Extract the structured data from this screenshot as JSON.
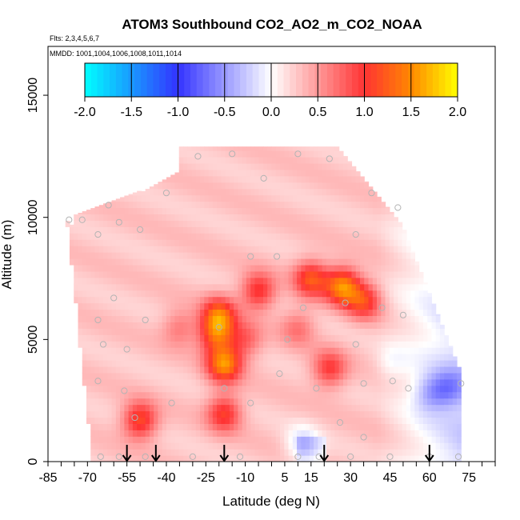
{
  "chart_data": {
    "type": "heatmap",
    "title": "ATOM3 Southbound CO2_AO2_m_CO2_NOAA",
    "flights_label": "Flts: 2,3,4,5,6,7",
    "dates_label": "MMDD: 1001,1004,1006,1008,1011,1014",
    "xlabel": "Latitude (deg N)",
    "ylabel": "Altitude (m)",
    "xlim": [
      -85,
      85
    ],
    "ylim": [
      0,
      17000
    ],
    "x_ticks": [
      "-85",
      "-70",
      "-55",
      "-40",
      "-25",
      "-10",
      "5",
      "15",
      "30",
      "45",
      "60",
      "75"
    ],
    "x_tick_values": [
      -85,
      -70,
      -55,
      -40,
      -25,
      -10,
      5,
      15,
      30,
      45,
      60,
      75
    ],
    "y_ticks": [
      "0",
      "5000",
      "10000",
      "15000"
    ],
    "y_tick_values": [
      0,
      5000,
      10000,
      15000
    ],
    "colorbar": {
      "min": -2.0,
      "max": 2.0,
      "ticks": [
        "-2.0",
        "-1.5",
        "-1.0",
        "-0.5",
        "0.0",
        "0.5",
        "1.0",
        "1.5",
        "2.0"
      ],
      "tick_values": [
        -2.0,
        -1.5,
        -1.0,
        -0.5,
        0.0,
        0.5,
        1.0,
        1.5,
        2.0
      ]
    },
    "colors": {
      "neg_max": "#00ffff",
      "neg_mid": "#3333ff",
      "zero": "#ffffff",
      "pos_low": "#ff3333",
      "pos_mid": "#ff8800",
      "pos_max": "#ffff00"
    },
    "profile_arrow_latitudes": [
      -55,
      -44,
      -18,
      20,
      60
    ],
    "field_features": [
      {
        "lat": -20,
        "alt": 6000,
        "value": 1.0
      },
      {
        "lat": -18,
        "alt": 4000,
        "value": 1.2
      },
      {
        "lat": -21,
        "alt": 5200,
        "value": 0.9
      },
      {
        "lat": 27,
        "alt": 7200,
        "value": 1.2
      },
      {
        "lat": 15,
        "alt": 7500,
        "value": 0.9
      },
      {
        "lat": 35,
        "alt": 6600,
        "value": 0.8
      },
      {
        "lat": -5,
        "alt": 7000,
        "value": 0.8
      },
      {
        "lat": -50,
        "alt": 1700,
        "value": 0.9
      },
      {
        "lat": -18,
        "alt": 2000,
        "value": 0.8
      },
      {
        "lat": 22,
        "alt": 3800,
        "value": 0.7
      },
      {
        "lat": -10,
        "alt": 5000,
        "value": 0.5
      },
      {
        "lat": -35,
        "alt": 5500,
        "value": 0.4
      },
      {
        "lat": 10,
        "alt": 5500,
        "value": 0.4
      },
      {
        "lat": 60,
        "alt": 2800,
        "value": -0.4
      },
      {
        "lat": 67,
        "alt": 3000,
        "value": -0.5
      },
      {
        "lat": 12,
        "alt": 700,
        "value": -0.5
      },
      {
        "lat": 45,
        "alt": 4000,
        "value": -0.2
      }
    ],
    "obs_points": [
      {
        "lat": -77,
        "alt": 9900
      },
      {
        "lat": -72,
        "alt": 9900
      },
      {
        "lat": -66,
        "alt": 9300
      },
      {
        "lat": -62,
        "alt": 10500
      },
      {
        "lat": -58,
        "alt": 9800
      },
      {
        "lat": -50,
        "alt": 9500
      },
      {
        "lat": -40,
        "alt": 11000
      },
      {
        "lat": -28,
        "alt": 12500
      },
      {
        "lat": -15,
        "alt": 12600
      },
      {
        "lat": -3,
        "alt": 11600
      },
      {
        "lat": 10,
        "alt": 12600
      },
      {
        "lat": 22,
        "alt": 12400
      },
      {
        "lat": 38,
        "alt": 11000
      },
      {
        "lat": 48,
        "alt": 10400
      },
      {
        "lat": 32,
        "alt": 9300
      },
      {
        "lat": -8,
        "alt": 8400
      },
      {
        "lat": 2,
        "alt": 8400
      },
      {
        "lat": -60,
        "alt": 6700
      },
      {
        "lat": -48,
        "alt": 5800
      },
      {
        "lat": -66,
        "alt": 5800
      },
      {
        "lat": -20,
        "alt": 5500
      },
      {
        "lat": 12,
        "alt": 6300
      },
      {
        "lat": 28,
        "alt": 6500
      },
      {
        "lat": 42,
        "alt": 6300
      },
      {
        "lat": 50,
        "alt": 6000
      },
      {
        "lat": -64,
        "alt": 4800
      },
      {
        "lat": -55,
        "alt": 4600
      },
      {
        "lat": 6,
        "alt": 5000
      },
      {
        "lat": 32,
        "alt": 4800
      },
      {
        "lat": -66,
        "alt": 3300
      },
      {
        "lat": -56,
        "alt": 2900
      },
      {
        "lat": -38,
        "alt": 2400
      },
      {
        "lat": -18,
        "alt": 3000
      },
      {
        "lat": 3,
        "alt": 3600
      },
      {
        "lat": 17,
        "alt": 3000
      },
      {
        "lat": 35,
        "alt": 3200
      },
      {
        "lat": 52,
        "alt": 3000
      },
      {
        "lat": 72,
        "alt": 3200
      },
      {
        "lat": 46,
        "alt": 3300
      },
      {
        "lat": -52,
        "alt": 1800
      },
      {
        "lat": -8,
        "alt": 2400
      },
      {
        "lat": 26,
        "alt": 1600
      },
      {
        "lat": 35,
        "alt": 1000
      },
      {
        "lat": -65,
        "alt": 200
      },
      {
        "lat": -58,
        "alt": 200
      },
      {
        "lat": -48,
        "alt": 200
      },
      {
        "lat": -30,
        "alt": 200
      },
      {
        "lat": -12,
        "alt": 200
      },
      {
        "lat": 10,
        "alt": 200
      },
      {
        "lat": 18,
        "alt": 200
      },
      {
        "lat": 30,
        "alt": 200
      },
      {
        "lat": 45,
        "alt": 200
      },
      {
        "lat": 60,
        "alt": 200
      },
      {
        "lat": 71,
        "alt": 200
      }
    ]
  }
}
